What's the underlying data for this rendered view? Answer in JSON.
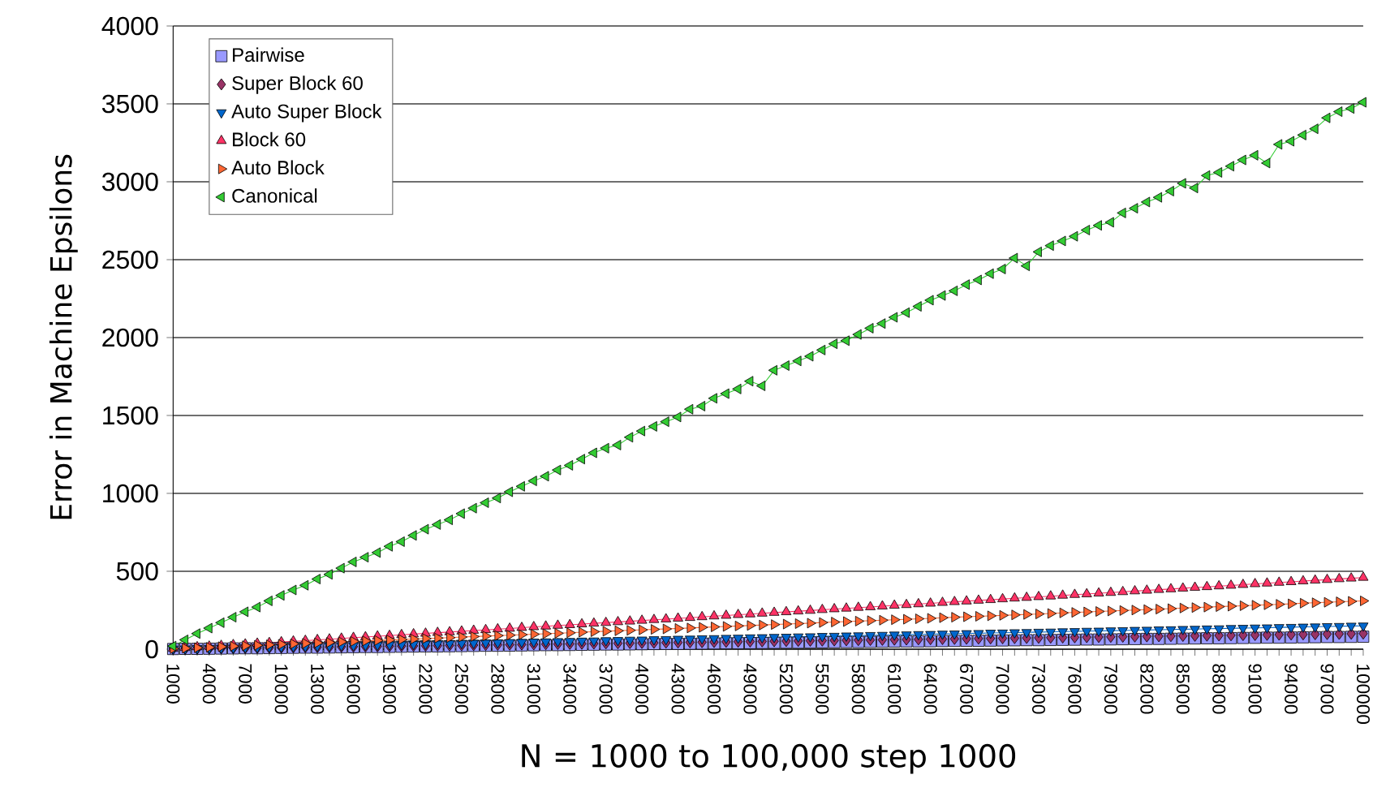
{
  "chart_data": {
    "type": "line",
    "xlabel": "N = 1000 to 100,000 step 1000",
    "ylabel": "Error in Machine Epsilons",
    "categories": [
      "1000",
      null,
      null,
      "4000",
      null,
      null,
      "7000",
      null,
      null,
      "10000",
      null,
      null,
      "13000",
      null,
      null,
      "16000",
      null,
      null,
      "19000",
      null,
      null,
      "22000",
      null,
      null,
      "25000",
      null,
      null,
      "28000",
      null,
      null,
      "31000",
      null,
      null,
      "34000",
      null,
      null,
      "37000",
      null,
      null,
      "40000",
      null,
      null,
      "43000",
      null,
      null,
      "46000",
      null,
      null,
      "49000",
      null,
      null,
      "52000",
      null,
      null,
      "55000",
      null,
      null,
      "58000",
      null,
      null,
      "61000",
      null,
      null,
      "64000",
      null,
      null,
      "67000",
      null,
      null,
      "70000",
      null,
      null,
      "73000",
      null,
      null,
      "76000",
      null,
      null,
      "79000",
      null,
      null,
      "82000",
      null,
      null,
      "85000",
      null,
      null,
      "88000",
      null,
      null,
      "91000",
      null,
      null,
      "94000",
      null,
      null,
      "97000",
      null,
      null,
      "100000"
    ],
    "ylim": [
      0,
      4000
    ],
    "yticks": [
      0,
      500,
      1000,
      1500,
      2000,
      2500,
      3000,
      3500,
      4000
    ],
    "grid": "y",
    "legend": "top left",
    "line_style": "solid",
    "series": [
      {
        "name": "Pairwise",
        "color": "#9999ff",
        "marker": "square",
        "values": [
          1,
          2,
          2,
          3,
          4,
          5,
          6,
          6,
          7,
          8,
          9,
          10,
          10,
          11,
          12,
          13,
          14,
          14,
          15,
          16,
          17,
          18,
          18,
          19,
          20,
          21,
          22,
          22,
          23,
          24,
          25,
          26,
          26,
          27,
          28,
          29,
          30,
          30,
          31,
          32,
          33,
          34,
          34,
          35,
          36,
          37,
          38,
          38,
          39,
          40,
          41,
          42,
          42,
          43,
          44,
          45,
          46,
          46,
          47,
          48,
          49,
          50,
          50,
          51,
          52,
          53,
          54,
          54,
          55,
          56,
          57,
          58,
          58,
          59,
          60,
          61,
          62,
          62,
          63,
          64,
          65,
          66,
          66,
          67,
          68,
          69,
          70,
          70,
          71,
          72,
          73,
          74,
          74,
          75,
          76,
          77,
          78,
          78,
          79,
          80
        ]
      },
      {
        "name": "Super Block 60",
        "color": "#993366",
        "marker": "diamond",
        "values": [
          1,
          2,
          3,
          4,
          5,
          6,
          7,
          8,
          9,
          10,
          11,
          12,
          13,
          14,
          15,
          16,
          17,
          18,
          19,
          20,
          21,
          22,
          23,
          24,
          25,
          26,
          27,
          28,
          29,
          30,
          31,
          32,
          33,
          34,
          35,
          36,
          37,
          38,
          39,
          40,
          41,
          42,
          43,
          44,
          45,
          46,
          47,
          48,
          49,
          50,
          51,
          52,
          53,
          54,
          55,
          56,
          57,
          58,
          59,
          60,
          61,
          62,
          63,
          64,
          65,
          66,
          67,
          68,
          69,
          70,
          71,
          72,
          73,
          74,
          75,
          76,
          77,
          78,
          79,
          80,
          81,
          82,
          83,
          84,
          85,
          86,
          87,
          88,
          89,
          90,
          91,
          92,
          93,
          94,
          95,
          96,
          97,
          98,
          99,
          100
        ]
      },
      {
        "name": "Auto Super Block",
        "color": "#0066cc",
        "marker": "triangle-down",
        "values": [
          2,
          3,
          5,
          6,
          8,
          9,
          11,
          12,
          14,
          15,
          17,
          18,
          20,
          21,
          23,
          24,
          26,
          27,
          29,
          30,
          32,
          33,
          35,
          36,
          38,
          39,
          41,
          42,
          44,
          45,
          47,
          48,
          50,
          51,
          53,
          54,
          56,
          57,
          59,
          60,
          62,
          63,
          65,
          66,
          68,
          69,
          71,
          72,
          74,
          75,
          77,
          78,
          80,
          81,
          83,
          84,
          86,
          87,
          89,
          90,
          92,
          93,
          95,
          96,
          98,
          99,
          101,
          102,
          104,
          105,
          107,
          108,
          110,
          111,
          113,
          114,
          116,
          117,
          119,
          120,
          122,
          123,
          125,
          126,
          128,
          129,
          131,
          132,
          134,
          135,
          137,
          138,
          140,
          141,
          143,
          144,
          146,
          147,
          149,
          150
        ]
      },
      {
        "name": "Block 60",
        "color": "#ff3366",
        "marker": "triangle",
        "values": [
          5,
          9,
          14,
          18,
          23,
          28,
          32,
          37,
          41,
          46,
          51,
          55,
          60,
          64,
          69,
          74,
          78,
          83,
          87,
          92,
          97,
          101,
          106,
          110,
          115,
          120,
          124,
          129,
          133,
          138,
          143,
          147,
          152,
          156,
          161,
          166,
          170,
          175,
          179,
          184,
          189,
          193,
          198,
          202,
          207,
          212,
          216,
          221,
          225,
          230,
          235,
          239,
          244,
          248,
          253,
          258,
          262,
          267,
          271,
          276,
          281,
          285,
          290,
          294,
          299,
          304,
          308,
          313,
          317,
          322,
          327,
          331,
          336,
          340,
          345,
          350,
          354,
          359,
          363,
          368,
          373,
          377,
          382,
          386,
          391,
          396,
          400,
          405,
          409,
          414,
          419,
          423,
          428,
          432,
          437,
          442,
          446,
          451,
          455,
          460
        ]
      },
      {
        "name": "Auto Block",
        "color": "#ff6633",
        "marker": "triangle-right",
        "values": [
          3,
          6,
          9,
          12,
          16,
          19,
          22,
          25,
          28,
          31,
          34,
          37,
          40,
          43,
          47,
          50,
          53,
          56,
          59,
          62,
          65,
          68,
          71,
          74,
          78,
          81,
          84,
          87,
          90,
          93,
          96,
          99,
          102,
          105,
          109,
          112,
          115,
          118,
          121,
          124,
          127,
          130,
          133,
          136,
          140,
          143,
          146,
          149,
          152,
          155,
          158,
          161,
          164,
          167,
          171,
          174,
          177,
          180,
          183,
          186,
          189,
          192,
          195,
          198,
          202,
          205,
          208,
          211,
          214,
          217,
          220,
          223,
          226,
          229,
          233,
          236,
          239,
          242,
          245,
          248,
          251,
          254,
          257,
          260,
          264,
          267,
          270,
          273,
          276,
          279,
          282,
          285,
          288,
          291,
          295,
          298,
          301,
          304,
          307,
          310
        ]
      },
      {
        "name": "Canonical",
        "color": "#33cc33",
        "marker": "triangle-left",
        "values": [
          20,
          60,
          100,
          135,
          170,
          205,
          240,
          270,
          310,
          345,
          380,
          410,
          450,
          480,
          520,
          560,
          590,
          620,
          660,
          690,
          730,
          770,
          800,
          830,
          870,
          905,
          940,
          970,
          1010,
          1045,
          1080,
          1110,
          1150,
          1180,
          1220,
          1260,
          1290,
          1310,
          1360,
          1400,
          1430,
          1460,
          1490,
          1540,
          1560,
          1610,
          1640,
          1670,
          1720,
          1690,
          1790,
          1820,
          1850,
          1880,
          1920,
          1960,
          1980,
          2020,
          2060,
          2090,
          2130,
          2160,
          2200,
          2240,
          2270,
          2300,
          2340,
          2370,
          2410,
          2440,
          2510,
          2460,
          2550,
          2590,
          2620,
          2650,
          2690,
          2720,
          2740,
          2800,
          2830,
          2870,
          2900,
          2940,
          2990,
          2960,
          3040,
          3060,
          3100,
          3140,
          3170,
          3120,
          3240,
          3260,
          3300,
          3340,
          3410,
          3450,
          3470,
          3510
        ]
      }
    ]
  }
}
